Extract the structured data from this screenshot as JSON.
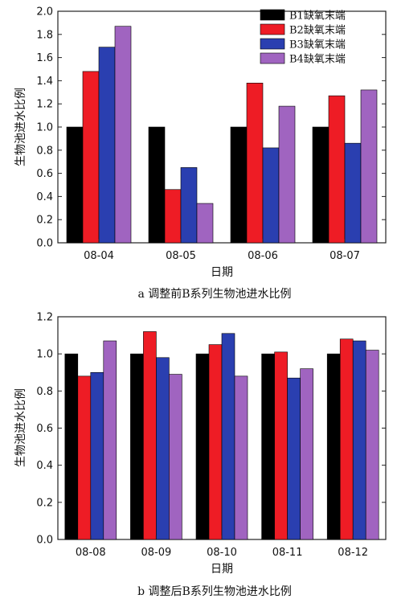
{
  "chart_data": [
    {
      "type": "bar",
      "title": "a 调整前B系列生物池进水比例",
      "xlabel": "日期",
      "ylabel": "生物池进水比例",
      "ylim": [
        0,
        2.0
      ],
      "yticks": [
        "0.0",
        "0.2",
        "0.4",
        "0.6",
        "0.8",
        "1.0",
        "1.2",
        "1.4",
        "1.6",
        "1.8",
        "2.0"
      ],
      "categories": [
        "08-04",
        "08-05",
        "08-06",
        "08-07"
      ],
      "legend_position": "top-right",
      "series": [
        {
          "name": "B1缺氧末端",
          "color": "#000000",
          "values": [
            1.0,
            1.0,
            1.0,
            1.0
          ]
        },
        {
          "name": "B2缺氧末端",
          "color": "#ee1c25",
          "values": [
            1.48,
            0.46,
            1.38,
            1.27
          ]
        },
        {
          "name": "B3缺氧末端",
          "color": "#2a3fb0",
          "values": [
            1.69,
            0.65,
            0.82,
            0.86
          ]
        },
        {
          "name": "B4缺氧末端",
          "color": "#a064c0",
          "values": [
            1.87,
            0.34,
            1.18,
            1.32
          ]
        }
      ]
    },
    {
      "type": "bar",
      "title": "b 调整后B系列生物池进水比例",
      "xlabel": "日期",
      "ylabel": "生物池进水比例",
      "ylim": [
        0,
        1.2
      ],
      "yticks": [
        "0.0",
        "0.2",
        "0.4",
        "0.6",
        "0.8",
        "1.0",
        "1.2"
      ],
      "categories": [
        "08-08",
        "08-09",
        "08-10",
        "08-11",
        "08-12"
      ],
      "legend_position": "none",
      "series": [
        {
          "name": "",
          "color": "#000000",
          "values": [
            1.0,
            1.0,
            1.0,
            1.0,
            1.0
          ]
        },
        {
          "name": "",
          "color": "#ee1c25",
          "values": [
            0.88,
            1.12,
            1.05,
            1.01,
            1.08
          ]
        },
        {
          "name": "",
          "color": "#2a3fb0",
          "values": [
            0.9,
            0.98,
            1.11,
            0.87,
            1.07
          ]
        },
        {
          "name": "",
          "color": "#a064c0",
          "values": [
            1.07,
            0.89,
            0.88,
            0.92,
            1.02
          ]
        }
      ]
    }
  ]
}
